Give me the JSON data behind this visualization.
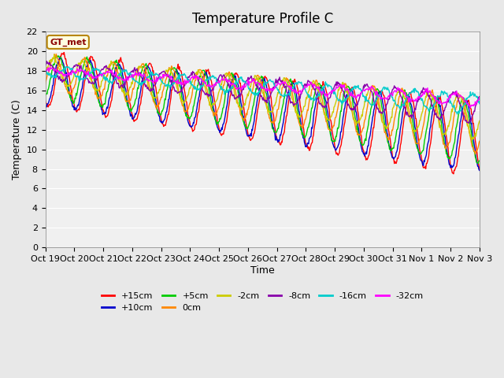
{
  "title": "Temperature Profile C",
  "xlabel": "Time",
  "ylabel": "Temperature (C)",
  "ylim": [
    0,
    22
  ],
  "yticks": [
    0,
    2,
    4,
    6,
    8,
    10,
    12,
    14,
    16,
    18,
    20,
    22
  ],
  "xtick_labels": [
    "Oct 19",
    "Oct 20",
    "Oct 21",
    "Oct 22",
    "Oct 23",
    "Oct 24",
    "Oct 25",
    "Oct 26",
    "Oct 27",
    "Oct 28",
    "Oct 29",
    "Oct 30",
    "Oct 31",
    "Nov 1",
    "Nov 2",
    "Nov 3"
  ],
  "background_color": "#e8e8e8",
  "plot_bg_color": "#f0f0f0",
  "legend_label": "GT_met",
  "series": [
    {
      "label": "+15cm",
      "color": "#ff0000"
    },
    {
      "label": "+10cm",
      "color": "#0000cc"
    },
    {
      "label": "+5cm",
      "color": "#00cc00"
    },
    {
      "label": "0cm",
      "color": "#ff8800"
    },
    {
      "label": "-2cm",
      "color": "#cccc00"
    },
    {
      "label": "-8cm",
      "color": "#8800aa"
    },
    {
      "label": "-16cm",
      "color": "#00cccc"
    },
    {
      "label": "-32cm",
      "color": "#ff00ff"
    }
  ],
  "line_width": 1.0,
  "title_fontsize": 12,
  "axis_fontsize": 9,
  "tick_fontsize": 8
}
